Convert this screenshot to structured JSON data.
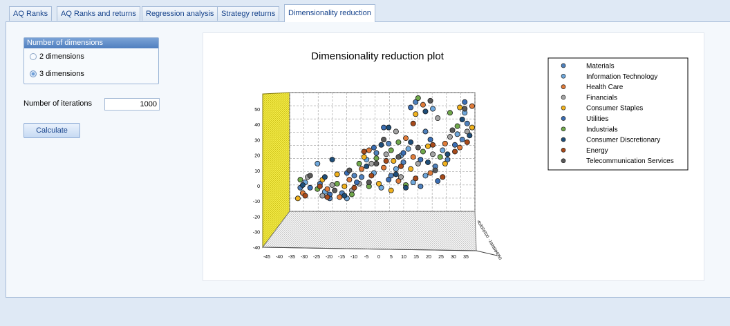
{
  "tabs": [
    {
      "label": "AQ Ranks",
      "active": false
    },
    {
      "label": "AQ Ranks and returns",
      "active": false
    },
    {
      "label": "Regression analysis",
      "active": false
    },
    {
      "label": "Strategy returns",
      "active": false
    },
    {
      "label": "Dimensionality reduction",
      "active": true
    }
  ],
  "dimensions": {
    "title": "Number of dimensions",
    "options": [
      {
        "label": "2 dimensions",
        "selected": false
      },
      {
        "label": "3 dimensions",
        "selected": true
      }
    ]
  },
  "iterations": {
    "label": "Number of iterations",
    "value": "1000"
  },
  "calculate_label": "Calculate",
  "chart_data": {
    "type": "scatter",
    "title": "Dimensionality reduction plot",
    "x_ticks": [
      "-45",
      "-40",
      "-35",
      "-30",
      "-25",
      "-20",
      "-15",
      "-10",
      "-5",
      "0",
      "5",
      "10",
      "15",
      "20",
      "25",
      "30",
      "35"
    ],
    "y_ticks": [
      "50",
      "40",
      "30",
      "20",
      "10",
      "0",
      "-10",
      "-20",
      "-30",
      "-40"
    ],
    "z_ticks": [
      "40",
      "30",
      "20",
      "10",
      "0",
      "-10",
      "-20",
      "-30",
      "-40",
      "-50"
    ],
    "xlim": [
      -45,
      35
    ],
    "ylim": [
      -40,
      55
    ],
    "legend_position": "top-right",
    "series": [
      {
        "name": "Materials",
        "color": "#4f81bd",
        "points": [
          [
            -37,
            -12
          ],
          [
            -29,
            -9
          ],
          [
            -20,
            -16
          ],
          [
            -12,
            -4
          ],
          [
            -6,
            14
          ],
          [
            0,
            -3
          ],
          [
            5,
            7
          ],
          [
            12,
            -11
          ],
          [
            18,
            4
          ],
          [
            23,
            9
          ],
          [
            29,
            24
          ],
          [
            10,
            52
          ],
          [
            31,
            36
          ],
          [
            -1,
            21
          ],
          [
            -25,
            -20
          ],
          [
            14,
            30
          ],
          [
            -15,
            -3
          ]
        ]
      },
      {
        "name": "Information Technology",
        "color": "#6fa8dc",
        "points": [
          [
            -35,
            -8
          ],
          [
            -27,
            -15
          ],
          [
            -18,
            -20
          ],
          [
            -10,
            9
          ],
          [
            -4,
            -12
          ],
          [
            2,
            2
          ],
          [
            7,
            17
          ],
          [
            14,
            -3
          ],
          [
            21,
            16
          ],
          [
            27,
            28
          ],
          [
            30,
            44
          ],
          [
            17,
            47
          ],
          [
            4,
            12
          ],
          [
            -7,
            -1
          ],
          [
            -30,
            6
          ],
          [
            9,
            -8
          ]
        ]
      },
      {
        "name": "Health Care",
        "color": "#e07b39",
        "points": [
          [
            -36,
            -16
          ],
          [
            -26,
            -13
          ],
          [
            -17,
            -6
          ],
          [
            -9,
            16
          ],
          [
            -3,
            3
          ],
          [
            3,
            -7
          ],
          [
            9,
            11
          ],
          [
            16,
            -1
          ],
          [
            22,
            21
          ],
          [
            28,
            18
          ],
          [
            13,
            50
          ],
          [
            33,
            49
          ],
          [
            -21,
            -19
          ],
          [
            6,
            25
          ],
          [
            -12,
            2
          ]
        ]
      },
      {
        "name": "Financials",
        "color": "#a5a5a5",
        "points": [
          [
            -34,
            -4
          ],
          [
            -24,
            -10
          ],
          [
            -16,
            -14
          ],
          [
            -8,
            6
          ],
          [
            -2,
            13
          ],
          [
            4,
            -4
          ],
          [
            11,
            6
          ],
          [
            17,
            13
          ],
          [
            24,
            26
          ],
          [
            31,
            30
          ],
          [
            19,
            40
          ],
          [
            -28,
            -18
          ],
          [
            2,
            30
          ],
          [
            -13,
            -9
          ]
        ]
      },
      {
        "name": "Consumer Staples",
        "color": "#f1b21d",
        "points": [
          [
            -38,
            -20
          ],
          [
            -28,
            -6
          ],
          [
            -19,
            -11
          ],
          [
            -11,
            11
          ],
          [
            -5,
            -9
          ],
          [
            1,
            8
          ],
          [
            8,
            2
          ],
          [
            15,
            19
          ],
          [
            22,
            6
          ],
          [
            28,
            48
          ],
          [
            10,
            43
          ],
          [
            33,
            33
          ],
          [
            -22,
            -2
          ],
          [
            0,
            -14
          ]
        ]
      },
      {
        "name": "Utilities",
        "color": "#3a6eb5",
        "points": [
          [
            -33,
            -12
          ],
          [
            -25,
            -17
          ],
          [
            -14,
            -8
          ],
          [
            -7,
            18
          ],
          [
            -1,
            -6
          ],
          [
            5,
            14
          ],
          [
            12,
            9
          ],
          [
            19,
            -7
          ],
          [
            26,
            20
          ],
          [
            30,
            52
          ],
          [
            8,
            48
          ],
          [
            -3,
            33
          ],
          [
            16,
            24
          ],
          [
            -18,
            -1
          ]
        ]
      },
      {
        "name": "Industrials",
        "color": "#70a84b",
        "points": [
          [
            -37,
            -6
          ],
          [
            -30,
            -13
          ],
          [
            -22,
            -9
          ],
          [
            -13,
            6
          ],
          [
            -6,
            10
          ],
          [
            0,
            16
          ],
          [
            6,
            -10
          ],
          [
            13,
            15
          ],
          [
            20,
            11
          ],
          [
            27,
            34
          ],
          [
            24,
            44
          ],
          [
            11,
            55
          ],
          [
            -9,
            -11
          ],
          [
            3,
            22
          ],
          [
            -16,
            -17
          ]
        ]
      },
      {
        "name": "Consumer Discretionary",
        "color": "#1f4e79",
        "points": [
          [
            -36,
            -10
          ],
          [
            -27,
            -4
          ],
          [
            -19,
            -18
          ],
          [
            -10,
            4
          ],
          [
            -4,
            20
          ],
          [
            2,
            -2
          ],
          [
            8,
            22
          ],
          [
            15,
            7
          ],
          [
            23,
            13
          ],
          [
            29,
            39
          ],
          [
            32,
            27
          ],
          [
            14,
            45
          ],
          [
            -24,
            9
          ],
          [
            -1,
            33
          ],
          [
            6,
            -12
          ]
        ]
      },
      {
        "name": "Energy",
        "color": "#a84a1a",
        "points": [
          [
            -35,
            -18
          ],
          [
            -26,
            -19
          ],
          [
            -15,
            -12
          ],
          [
            -8,
            -3
          ],
          [
            -2,
            8
          ],
          [
            4,
            4
          ],
          [
            10,
            -5
          ],
          [
            17,
            20
          ],
          [
            21,
            -4
          ],
          [
            26,
            15
          ],
          [
            31,
            22
          ],
          [
            9,
            36
          ],
          [
            -11,
            15
          ],
          [
            -29,
            -11
          ]
        ]
      },
      {
        "name": "Telecommunication Services",
        "color": "#595959",
        "points": [
          [
            -33,
            -3
          ],
          [
            -23,
            -14
          ],
          [
            -17,
            1
          ],
          [
            -9,
            -8
          ],
          [
            -3,
            24
          ],
          [
            3,
            11
          ],
          [
            11,
            18
          ],
          [
            18,
            1
          ],
          [
            25,
            31
          ],
          [
            30,
            47
          ],
          [
            16,
            53
          ],
          [
            -6,
            6
          ]
        ]
      }
    ]
  }
}
